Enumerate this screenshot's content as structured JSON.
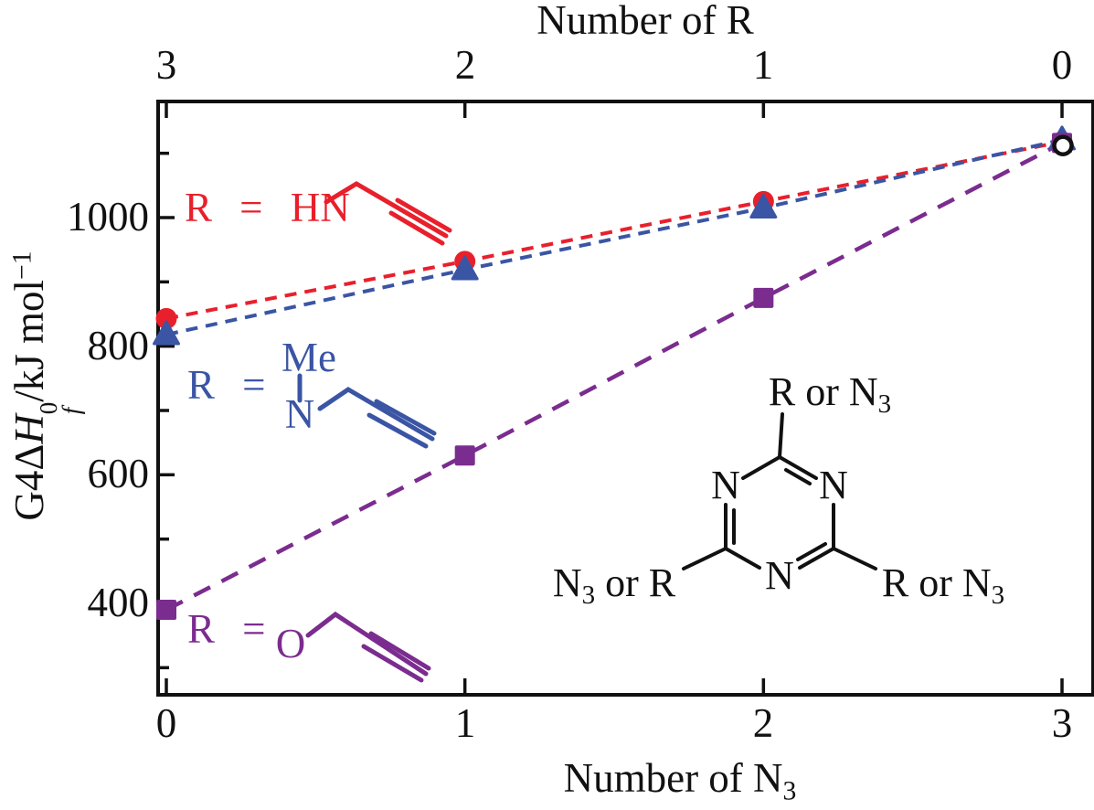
{
  "colors": {
    "red": "#e8202c",
    "blue": "#3a55a4",
    "purple": "#7b2c8f",
    "black": "#111111",
    "open_marker_fill": "#ffffff"
  },
  "axes": {
    "top_title": "Number of R",
    "bottom_title_base": "Number of N",
    "bottom_title_sub": "3",
    "top_tick_labels": [
      "3",
      "2",
      "1",
      "0"
    ],
    "bottom_tick_labels": [
      "0",
      "1",
      "2",
      "3"
    ],
    "y_tick_labels": [
      "1000",
      "800",
      "600",
      "400"
    ],
    "y_title": {
      "prefix": "G4Δ",
      "h": "H",
      "sup": "0",
      "sub": "f",
      "mid": "/kJ mol",
      "exp": "−1"
    }
  },
  "series_labels": {
    "red": {
      "lhs": "R = HN"
    },
    "blue": {
      "lhs": "R =",
      "me": "Me",
      "n": "N"
    },
    "purple": {
      "lhs": "R =",
      "o": "O"
    }
  },
  "structure_labels": {
    "top_base": "R or N",
    "top_sub": "3",
    "left_base": "N",
    "left_sub": "3",
    "left_rest": " or R",
    "right_base": "R or N",
    "right_sub": "3",
    "ring_n1": "N",
    "ring_n2": "N",
    "ring_n3": "N"
  },
  "chart_data": {
    "type": "line",
    "x": [
      0,
      1,
      2,
      3
    ],
    "xlabel_bottom": "Number of N3",
    "xlabel_top": "Number of R",
    "ylabel": "G4 ΔHf0 / kJ mol-1",
    "x_bottom_ticks": [
      0,
      1,
      2,
      3
    ],
    "x_top_ticks": [
      3,
      2,
      1,
      0
    ],
    "y_major_ticks": [
      400,
      600,
      800,
      1000
    ],
    "y_minor_ticks": [
      300,
      500,
      700,
      900,
      1100
    ],
    "ylim": [
      258,
      1181
    ],
    "xlim": [
      -0.03,
      3.1
    ],
    "grid": false,
    "legend": "inline colored labels with drawn substituent structures",
    "series": [
      {
        "name": "R = HN–CH2–C≡CH (propargylamino)",
        "marker": "circle",
        "color": "#e8202c",
        "linestyle": "dashed",
        "dash": "short",
        "values": [
          843,
          932,
          1025,
          1118
        ]
      },
      {
        "name": "R = N(Me)–CH2–C≡CH (N-methylpropargylamino)",
        "marker": "triangle",
        "color": "#3a55a4",
        "linestyle": "dashed",
        "dash": "short",
        "values": [
          818,
          919,
          1015,
          1121
        ]
      },
      {
        "name": "R = O–CH2–C≡CH (propargyloxy)",
        "marker": "square",
        "color": "#7b2c8f",
        "linestyle": "dashed",
        "dash": "long",
        "values": [
          390,
          630,
          875,
          1116
        ]
      }
    ],
    "shared_endpoint": {
      "x": 3,
      "y": 1112,
      "marker": "open-circle",
      "note": "common triazido endpoint where all three series converge"
    }
  }
}
